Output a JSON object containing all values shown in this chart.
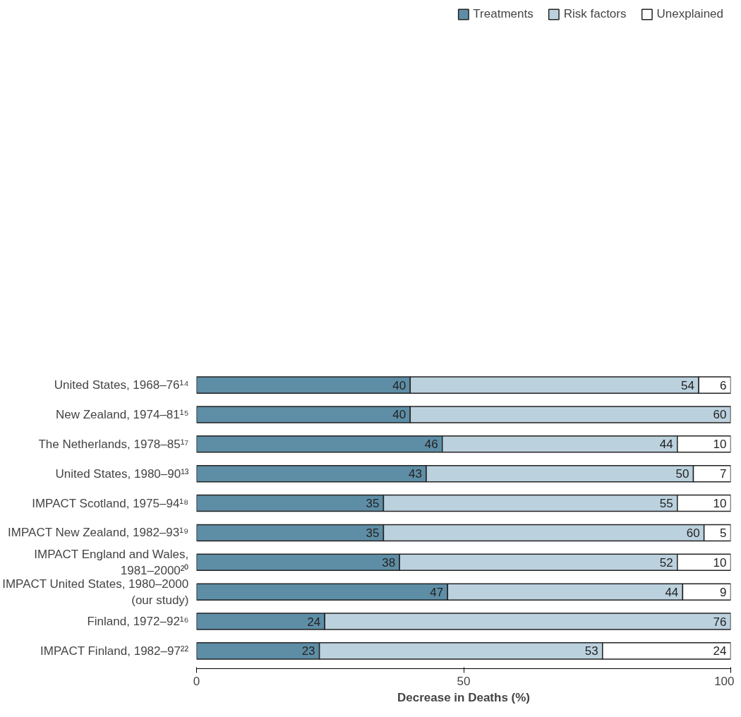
{
  "chart_data": {
    "type": "bar",
    "orientation": "horizontal",
    "stacked": true,
    "data_labels": true,
    "grid": false,
    "legend": "top right",
    "xlabel": "Decrease in Deaths (%)",
    "xlim": [
      0,
      100
    ],
    "xticks": [
      0,
      50,
      100
    ],
    "categories": [
      "United States, 1968–76¹⁴",
      "New Zealand, 1974–81¹⁵",
      "The Netherlands, 1978–85¹⁷",
      "United States, 1980–90¹³",
      "IMPACT Scotland, 1975–94¹⁸",
      "IMPACT New Zealand, 1982–93¹⁹",
      "IMPACT England and Wales,\n1981–2000²⁰",
      "IMPACT United States, 1980–2000\n(our study)",
      "Finland, 1972–92¹⁶",
      "IMPACT Finland, 1982–97²²"
    ],
    "series": [
      {
        "name": "Treatments",
        "color": "#5e8ea6",
        "values": [
          40,
          40,
          46,
          43,
          35,
          35,
          38,
          47,
          24,
          23
        ]
      },
      {
        "name": "Risk factors",
        "color": "#bcd1de",
        "values": [
          54,
          60,
          44,
          50,
          55,
          60,
          52,
          44,
          76,
          53
        ]
      },
      {
        "name": "Unexplained",
        "color": "#ffffff",
        "values": [
          6,
          null,
          10,
          7,
          10,
          5,
          10,
          9,
          null,
          24
        ]
      }
    ]
  }
}
